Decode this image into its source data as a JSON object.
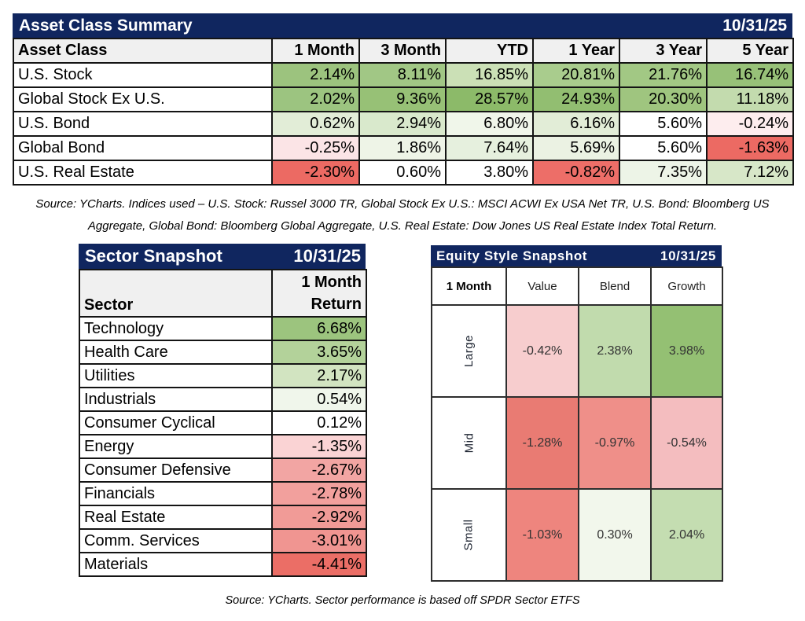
{
  "colors": {
    "navy_bar": "#10265F",
    "header_gray": "#F0F0F0",
    "grid_border": "#141414",
    "strong_green": "#8CBA69",
    "strong_red": "#EB6E66",
    "neutral_white": "#FFFFFF"
  },
  "notes": {
    "asset_source_line1": "Source: YCharts. Indices used – U.S. Stock: Russel 3000 TR, Global Stock Ex U.S.: MSCI ACWI Ex USA Net TR, U.S. Bond: Bloomberg US",
    "asset_source_line2": "Aggregate, Global Bond: Bloomberg Global Aggregate, U.S. Real Estate: Dow Jones US Real Estate Index Total Return.",
    "sector_source": "Source: YCharts. Sector performance is based off SPDR Sector ETFS"
  },
  "chart_data": [
    {
      "type": "table",
      "name": "asset-class-summary",
      "title": "Asset Class Summary",
      "date": "10/31/25",
      "value_unit": "%",
      "columns": [
        "Asset Class",
        "1 Month",
        "3 Month",
        "YTD",
        "1 Year",
        "3 Year",
        "5 Year"
      ],
      "rows": [
        {
          "label": "U.S. Stock",
          "values": [
            2.14,
            8.11,
            16.85,
            20.81,
            21.76,
            16.74
          ],
          "colors": [
            "#9CC37E",
            "#A1C785",
            "#CBE0B6",
            "#A9CC8D",
            "#A2C884",
            "#97C178"
          ]
        },
        {
          "label": "Global Stock Ex U.S.",
          "values": [
            2.02,
            9.36,
            28.57,
            24.93,
            20.3,
            11.18
          ],
          "colors": [
            "#9CC480",
            "#97C176",
            "#8CBA69",
            "#92BE71",
            "#9FC57F",
            "#C3DBAE"
          ]
        },
        {
          "label": "U.S. Bond",
          "values": [
            0.62,
            2.94,
            6.8,
            6.16,
            5.6,
            -0.24
          ],
          "colors": [
            "#E2EDD7",
            "#D9E9CC",
            "#F0F6EA",
            "#E2EDD7",
            "#FFFFFF",
            "#FDEDEE"
          ]
        },
        {
          "label": "Global Bond",
          "values": [
            -0.25,
            1.86,
            7.64,
            5.69,
            5.6,
            -1.63
          ],
          "colors": [
            "#FBE4E6",
            "#EEF4E7",
            "#E6F0DE",
            "#EBF2E3",
            "#FFFFFF",
            "#EC6A63"
          ]
        },
        {
          "label": "U.S. Real Estate",
          "values": [
            -2.3,
            0.6,
            3.8,
            -0.82,
            7.35,
            7.12
          ],
          "colors": [
            "#EC6A63",
            "#FFFFFF",
            "#FFFFFF",
            "#ED6E68",
            "#EDF4E7",
            "#D7E7C8"
          ]
        }
      ]
    },
    {
      "type": "table",
      "name": "sector-snapshot",
      "title": "Sector Snapshot",
      "date": "10/31/25",
      "value_unit": "%",
      "columns": [
        "Sector",
        "1 Month Return"
      ],
      "rows": [
        {
          "label": "Technology",
          "value": 6.68,
          "color": "#9CC47E"
        },
        {
          "label": "Health Care",
          "value": 3.65,
          "color": "#B3D29A"
        },
        {
          "label": "Utilities",
          "value": 2.17,
          "color": "#D2E4C1"
        },
        {
          "label": "Industrials",
          "value": 0.54,
          "color": "#F0F6EB"
        },
        {
          "label": "Consumer Cyclical",
          "value": 0.12,
          "color": "#FFFFFF"
        },
        {
          "label": "Energy",
          "value": -1.35,
          "color": "#FAD3D4"
        },
        {
          "label": "Consumer Defensive",
          "value": -2.67,
          "color": "#F2A5A3"
        },
        {
          "label": "Financials",
          "value": -2.78,
          "color": "#F2A09D"
        },
        {
          "label": "Real Estate",
          "value": -2.92,
          "color": "#F19B97"
        },
        {
          "label": "Comm. Services",
          "value": -3.01,
          "color": "#F09591"
        },
        {
          "label": "Materials",
          "value": -4.41,
          "color": "#EB6E66"
        }
      ]
    },
    {
      "type": "heatmap",
      "name": "equity-style-snapshot",
      "title": "Equity Style Snapshot",
      "date": "10/31/25",
      "value_unit": "%",
      "corner_label": "1 Month",
      "columns": [
        "Value",
        "Blend",
        "Growth"
      ],
      "rows": [
        {
          "label": "Large",
          "values": [
            -0.42,
            2.38,
            3.98
          ],
          "colors": [
            "#F7CDCE",
            "#C1DBAD",
            "#94C073"
          ]
        },
        {
          "label": "Mid",
          "values": [
            -1.28,
            -0.97,
            -0.54
          ],
          "colors": [
            "#E97B73",
            "#EF8F89",
            "#F4BDBF"
          ]
        },
        {
          "label": "Small",
          "values": [
            -1.03,
            0.3,
            2.04
          ],
          "colors": [
            "#EE857E",
            "#F2F7EC",
            "#C4DDB1"
          ]
        }
      ]
    }
  ]
}
